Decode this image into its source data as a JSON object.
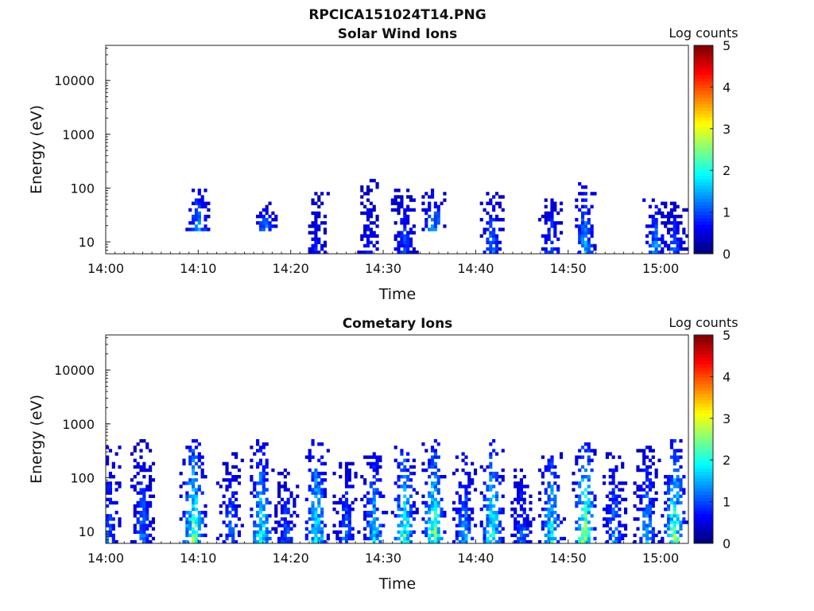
{
  "figure": {
    "filename": "RPCICA151024T14.PNG"
  },
  "chart_data": [
    {
      "type": "heatmap",
      "title": "Solar Wind Ions",
      "xlabel": "Time",
      "ylabel": "Energy (eV)",
      "yscale": "log",
      "xlim": [
        "14:00",
        "15:03"
      ],
      "ylim": [
        6,
        45000
      ],
      "x_ticks": [
        "14:00",
        "14:10",
        "14:20",
        "14:30",
        "14:40",
        "14:50",
        "15:00"
      ],
      "y_ticks": [
        "10",
        "100",
        "1000",
        "10000"
      ],
      "colorbar": {
        "label": "Log counts",
        "range": [
          0,
          5
        ],
        "ticks": [
          "0",
          "1",
          "2",
          "3",
          "4",
          "5"
        ],
        "colormap": "jet"
      },
      "grid": false,
      "description_of_data": "sparse bursts",
      "bursts": [
        {
          "t": 10.0,
          "e_lo": 15,
          "e_hi": 100,
          "peak": 2.0
        },
        {
          "t": 17.2,
          "e_lo": 15,
          "e_hi": 60,
          "peak": 1.8
        },
        {
          "t": 22.8,
          "e_lo": 6,
          "e_hi": 80,
          "peak": 1.0
        },
        {
          "t": 28.5,
          "e_lo": 6,
          "e_hi": 150,
          "peak": 1.0
        },
        {
          "t": 32.3,
          "e_lo": 6,
          "e_hi": 100,
          "peak": 1.4
        },
        {
          "t": 35.5,
          "e_lo": 15,
          "e_hi": 100,
          "peak": 2.0
        },
        {
          "t": 41.8,
          "e_lo": 6,
          "e_hi": 80,
          "peak": 1.7
        },
        {
          "t": 48.2,
          "e_lo": 6,
          "e_hi": 60,
          "peak": 1.6
        },
        {
          "t": 51.8,
          "e_lo": 6,
          "e_hi": 150,
          "peak": 1.9
        },
        {
          "t": 59.5,
          "e_lo": 6,
          "e_hi": 60,
          "peak": 1.9
        },
        {
          "t": 61.5,
          "e_lo": 6,
          "e_hi": 60,
          "peak": 1.4
        }
      ]
    },
    {
      "type": "heatmap",
      "title": "Cometary Ions",
      "xlabel": "Time",
      "ylabel": "Energy (eV)",
      "yscale": "log",
      "xlim": [
        "14:00",
        "15:03"
      ],
      "ylim": [
        6,
        45000
      ],
      "x_ticks": [
        "14:00",
        "14:10",
        "14:20",
        "14:30",
        "14:40",
        "14:50",
        "15:00"
      ],
      "y_ticks": [
        "10",
        "100",
        "1000",
        "10000"
      ],
      "colorbar": {
        "label": "Log counts",
        "range": [
          0,
          5
        ],
        "ticks": [
          "0",
          "1",
          "2",
          "3",
          "4",
          "5"
        ],
        "colormap": "jet"
      },
      "grid": false,
      "bursts": [
        {
          "t": 0.3,
          "e_lo": 6,
          "e_hi": 400,
          "peak": 1.5
        },
        {
          "t": 4.0,
          "e_lo": 6,
          "e_hi": 500,
          "peak": 1.6
        },
        {
          "t": 9.5,
          "e_lo": 6,
          "e_hi": 500,
          "peak": 3.3
        },
        {
          "t": 13.5,
          "e_lo": 6,
          "e_hi": 300,
          "peak": 1.6
        },
        {
          "t": 16.8,
          "e_lo": 6,
          "e_hi": 500,
          "peak": 2.6
        },
        {
          "t": 19.5,
          "e_lo": 6,
          "e_hi": 150,
          "peak": 1.5
        },
        {
          "t": 22.8,
          "e_lo": 6,
          "e_hi": 500,
          "peak": 2.7
        },
        {
          "t": 26.0,
          "e_lo": 6,
          "e_hi": 200,
          "peak": 1.6
        },
        {
          "t": 29.0,
          "e_lo": 6,
          "e_hi": 300,
          "peak": 2.3
        },
        {
          "t": 32.3,
          "e_lo": 6,
          "e_hi": 400,
          "peak": 3.0
        },
        {
          "t": 35.5,
          "e_lo": 6,
          "e_hi": 500,
          "peak": 3.2
        },
        {
          "t": 38.8,
          "e_lo": 6,
          "e_hi": 300,
          "peak": 1.9
        },
        {
          "t": 41.8,
          "e_lo": 6,
          "e_hi": 500,
          "peak": 2.9
        },
        {
          "t": 45.0,
          "e_lo": 6,
          "e_hi": 150,
          "peak": 1.5
        },
        {
          "t": 48.2,
          "e_lo": 6,
          "e_hi": 300,
          "peak": 2.7
        },
        {
          "t": 51.8,
          "e_lo": 6,
          "e_hi": 500,
          "peak": 3.5
        },
        {
          "t": 55.0,
          "e_lo": 6,
          "e_hi": 300,
          "peak": 1.8
        },
        {
          "t": 58.5,
          "e_lo": 6,
          "e_hi": 400,
          "peak": 2.0
        },
        {
          "t": 61.5,
          "e_lo": 6,
          "e_hi": 500,
          "peak": 3.1
        }
      ]
    }
  ]
}
